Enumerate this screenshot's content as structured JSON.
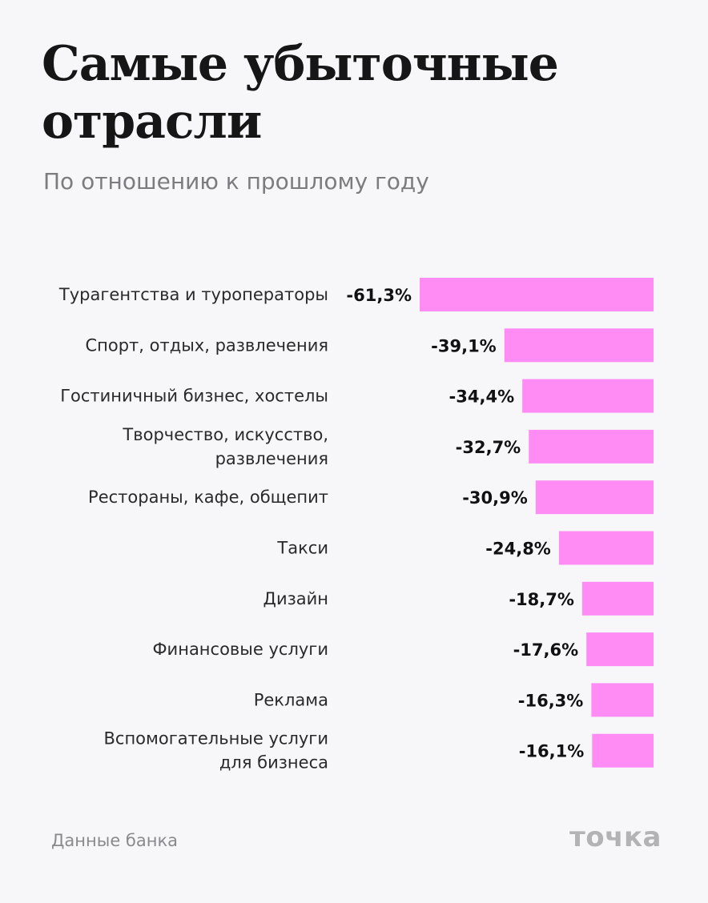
{
  "title": "Самые убыточные отрасли",
  "subtitle": "По отношению к прошлому году",
  "source": "Данные банка",
  "logo": "точка",
  "colors": {
    "bar": "#ff8cf4",
    "background": "#f7f7fa"
  },
  "chart_data": {
    "type": "bar",
    "orientation": "horizontal",
    "categories": [
      "Турагентства и туроператоры",
      "Спорт, отдых, развлечения",
      "Гостиничный бизнес, хостелы",
      "Творчество, искусство, развлечения",
      "Рестораны, кафе, общепит",
      "Такси",
      "Дизайн",
      "Финансовые услуги",
      "Реклама",
      "Вспомогательные услуги для бизнеса"
    ],
    "values": [
      -61.3,
      -39.1,
      -34.4,
      -32.7,
      -30.9,
      -24.8,
      -18.7,
      -17.6,
      -16.3,
      -16.1
    ],
    "labels": [
      "-61,3%",
      "-39,1%",
      "-34,4%",
      "-32,7%",
      "-30,9%",
      "-24,8%",
      "-18,7%",
      "-17,6%",
      "-16,3%",
      "-16,1%"
    ],
    "unit": "%",
    "grid": false,
    "legend": false
  }
}
